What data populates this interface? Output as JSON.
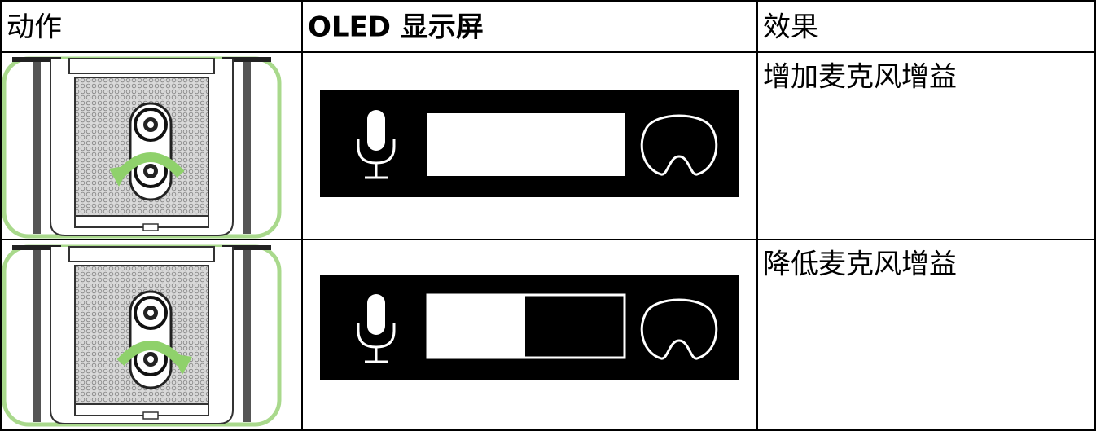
{
  "table": {
    "header": [
      "动作",
      "OLED 显示屏",
      "效果"
    ],
    "rows": [
      {
        "effect": "增加麦克风增益"
      },
      {
        "effect": "降低麦克风增益"
      }
    ]
  }
}
